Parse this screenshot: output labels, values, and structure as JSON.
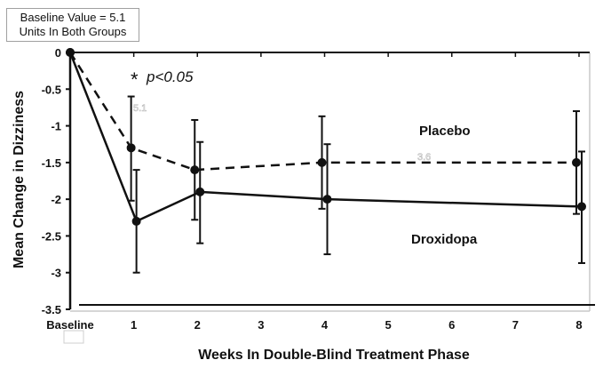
{
  "chart_data": {
    "type": "line",
    "title": "",
    "xlabel": "Weeks In Double-Blind Treatment Phase",
    "ylabel": "Mean Change in Dizziness",
    "xlim": [
      0,
      8
    ],
    "ylim": [
      -3.5,
      0
    ],
    "x_tick_values": [
      0,
      1,
      2,
      3,
      4,
      5,
      6,
      7,
      8
    ],
    "x_tick_labels": [
      "Baseline",
      "1",
      "2",
      "3",
      "4",
      "5",
      "6",
      "7",
      "8"
    ],
    "y_tick_values": [
      0,
      -0.5,
      -1,
      -1.5,
      -2,
      -2.5,
      -3,
      -3.5
    ],
    "y_tick_labels": [
      "0",
      "-0.5",
      "-1",
      "-1.5",
      "-2",
      "-2.5",
      "-3",
      "-3.5"
    ],
    "grid": false,
    "series": [
      {
        "name": "Placebo",
        "line_style": "dashed",
        "x": [
          0,
          1,
          2,
          4,
          8
        ],
        "y": [
          0,
          -1.3,
          -1.6,
          -1.5,
          -1.5
        ],
        "err_upper": [
          null,
          -0.6,
          -0.92,
          -0.87,
          -0.8
        ],
        "err_lower": [
          null,
          -2.02,
          -2.28,
          -2.13,
          -2.2
        ]
      },
      {
        "name": "Droxidopa",
        "line_style": "solid",
        "x": [
          0,
          1,
          2,
          4,
          8
        ],
        "y": [
          0,
          -2.3,
          -1.9,
          -2.0,
          -2.1
        ],
        "err_upper": [
          null,
          -1.6,
          -1.22,
          -1.25,
          -1.35
        ],
        "err_lower": [
          null,
          -3.0,
          -2.6,
          -2.75,
          -2.87
        ]
      }
    ],
    "annotations": [
      {
        "text": "Baseline Value = 5.1",
        "text2": "Units In Both Groups"
      },
      {
        "text": "*",
        "text2": "p<0.05"
      },
      {
        "text": "Placebo"
      },
      {
        "text": "Droxidopa"
      },
      {
        "text": "5.1"
      },
      {
        "text": "3.6"
      }
    ],
    "legend": "inline-labels"
  }
}
